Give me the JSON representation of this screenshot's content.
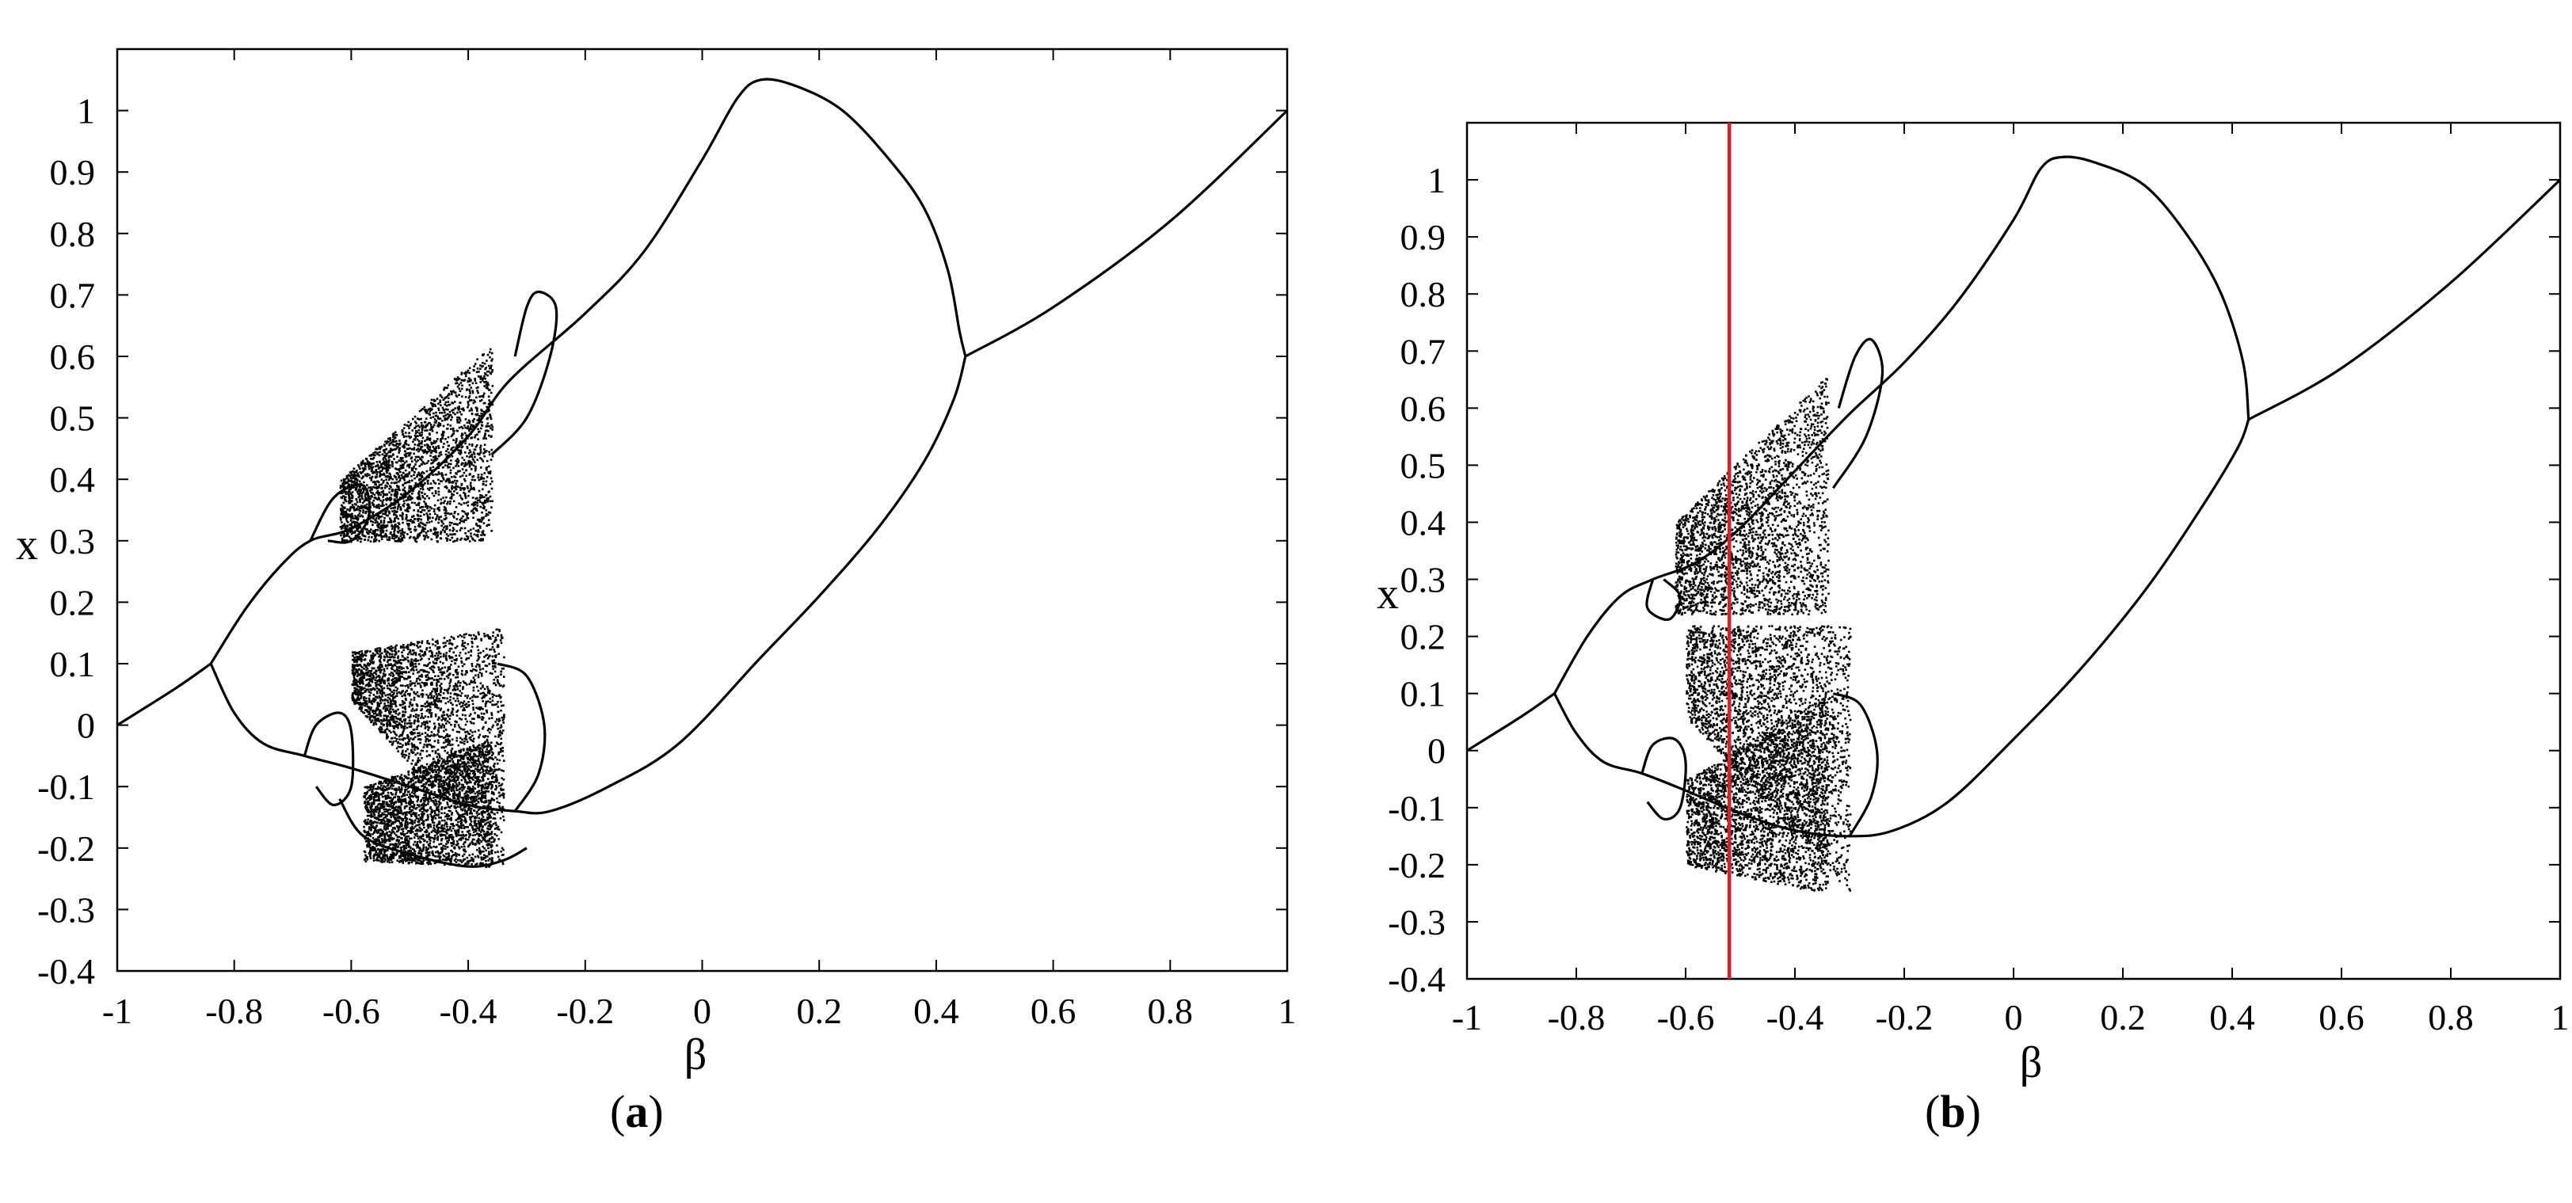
{
  "chart_data": [
    {
      "id": "a",
      "type": "scatter",
      "subtype": "bifurcation-diagram",
      "caption_letter": "a",
      "xlabel": "β",
      "ylabel": "x",
      "xlim": [
        -1,
        1
      ],
      "ylim": [
        -0.4,
        1.1
      ],
      "xticks": [
        -1,
        -0.8,
        -0.6,
        -0.4,
        -0.2,
        0,
        0.2,
        0.4,
        0.6,
        0.8,
        1
      ],
      "xtick_labels": [
        "-1",
        "-0.8",
        "-0.6",
        "-0.4",
        "-0.2",
        "0",
        "0.2",
        "0.4",
        "0.6",
        "0.8",
        "1"
      ],
      "yticks": [
        -0.4,
        -0.3,
        -0.2,
        -0.1,
        0,
        0.1,
        0.2,
        0.3,
        0.4,
        0.5,
        0.6,
        0.7,
        0.8,
        0.9,
        1
      ],
      "ytick_labels": [
        "-0.4",
        "-0.3",
        "-0.2",
        "-0.1",
        "0",
        "0.1",
        "0.2",
        "0.3",
        "0.4",
        "0.5",
        "0.6",
        "0.7",
        "0.8",
        "0.9",
        "1"
      ],
      "grid": false,
      "branches": [
        {
          "points": [
            [
              -1,
              0.0
            ],
            [
              -0.9,
              0.06
            ],
            [
              -0.84,
              0.1
            ]
          ]
        },
        {
          "points": [
            [
              -0.84,
              0.1
            ],
            [
              -0.78,
              0.19
            ],
            [
              -0.72,
              0.26
            ],
            [
              -0.67,
              0.3
            ],
            [
              -0.6,
              0.32
            ],
            [
              -0.5,
              0.38
            ],
            [
              -0.4,
              0.47
            ],
            [
              -0.33,
              0.56
            ],
            [
              -0.2,
              0.67
            ],
            [
              -0.1,
              0.77
            ],
            [
              0.0,
              0.92
            ],
            [
              0.06,
              1.02
            ],
            [
              0.1,
              1.05
            ],
            [
              0.16,
              1.04
            ],
            [
              0.24,
              1.0
            ],
            [
              0.32,
              0.92
            ],
            [
              0.38,
              0.84
            ],
            [
              0.42,
              0.74
            ],
            [
              0.44,
              0.64
            ],
            [
              0.45,
              0.6
            ]
          ]
        },
        {
          "points": [
            [
              -0.84,
              0.1
            ],
            [
              -0.8,
              0.02
            ],
            [
              -0.75,
              -0.03
            ],
            [
              -0.68,
              -0.05
            ],
            [
              -0.6,
              -0.07
            ],
            [
              -0.5,
              -0.1
            ],
            [
              -0.4,
              -0.13
            ],
            [
              -0.32,
              -0.14
            ],
            [
              -0.26,
              -0.14
            ],
            [
              -0.16,
              -0.1
            ],
            [
              -0.04,
              -0.03
            ],
            [
              0.1,
              0.11
            ],
            [
              0.2,
              0.21
            ],
            [
              0.3,
              0.32
            ],
            [
              0.38,
              0.43
            ],
            [
              0.43,
              0.53
            ],
            [
              0.45,
              0.6
            ]
          ]
        },
        {
          "points": [
            [
              0.45,
              0.6
            ],
            [
              0.6,
              0.68
            ],
            [
              0.8,
              0.82
            ],
            [
              1.0,
              1.0
            ]
          ]
        },
        {
          "points": [
            [
              -0.32,
              0.6
            ],
            [
              -0.3,
              0.68
            ],
            [
              -0.28,
              0.705
            ],
            [
              -0.25,
              0.68
            ],
            [
              -0.26,
              0.6
            ],
            [
              -0.3,
              0.5
            ],
            [
              -0.36,
              0.44
            ]
          ]
        },
        {
          "points": [
            [
              -0.67,
              0.3
            ],
            [
              -0.63,
              0.37
            ],
            [
              -0.58,
              0.39
            ],
            [
              -0.57,
              0.34
            ],
            [
              -0.6,
              0.3
            ],
            [
              -0.64,
              0.3
            ]
          ]
        },
        {
          "points": [
            [
              -0.32,
              -0.14
            ],
            [
              -0.28,
              -0.08
            ],
            [
              -0.27,
              0.0
            ],
            [
              -0.3,
              0.08
            ],
            [
              -0.35,
              0.1
            ]
          ]
        },
        {
          "points": [
            [
              -0.68,
              -0.05
            ],
            [
              -0.66,
              0.0
            ],
            [
              -0.62,
              0.02
            ],
            [
              -0.6,
              -0.01
            ],
            [
              -0.6,
              -0.1
            ],
            [
              -0.63,
              -0.13
            ],
            [
              -0.66,
              -0.1
            ]
          ]
        },
        {
          "points": [
            [
              -0.62,
              -0.12
            ],
            [
              -0.58,
              -0.18
            ],
            [
              -0.5,
              -0.21
            ],
            [
              -0.4,
              -0.23
            ],
            [
              -0.34,
              -0.22
            ],
            [
              -0.3,
              -0.2
            ]
          ]
        }
      ],
      "chaotic_regions": [
        {
          "x": [
            -0.62,
            -0.36
          ],
          "ylow": [
            0.3,
            0.3
          ],
          "yhigh": [
            0.4,
            0.62
          ]
        },
        {
          "x": [
            -0.6,
            -0.34
          ],
          "ylow": [
            0.04,
            -0.23
          ],
          "yhigh": [
            0.12,
            0.16
          ]
        },
        {
          "x": [
            -0.58,
            -0.36
          ],
          "ylow": [
            -0.22,
            -0.23
          ],
          "yhigh": [
            -0.1,
            -0.02
          ]
        }
      ]
    },
    {
      "id": "b",
      "type": "scatter",
      "subtype": "bifurcation-diagram",
      "caption_letter": "b",
      "xlabel": "β",
      "ylabel": "x",
      "xlim": [
        -1,
        1
      ],
      "ylim": [
        -0.4,
        1.1
      ],
      "xticks": [
        -1,
        -0.8,
        -0.6,
        -0.4,
        -0.2,
        0,
        0.2,
        0.4,
        0.6,
        0.8,
        1
      ],
      "xtick_labels": [
        "-1",
        "-0.8",
        "-0.6",
        "-0.4",
        "-0.2",
        "0",
        "0.2",
        "0.4",
        "0.6",
        "0.8",
        "1"
      ],
      "yticks": [
        -0.4,
        -0.3,
        -0.2,
        -0.1,
        0,
        0.1,
        0.2,
        0.3,
        0.4,
        0.5,
        0.6,
        0.7,
        0.8,
        0.9,
        1
      ],
      "ytick_labels": [
        "-0.4",
        "-0.3",
        "-0.2",
        "-0.1",
        "0",
        "0.1",
        "0.2",
        "0.3",
        "0.4",
        "0.5",
        "0.6",
        "0.7",
        "0.8",
        "0.9",
        "1"
      ],
      "grid": false,
      "marker_line": {
        "x": -0.52,
        "color": "#e02020"
      },
      "branches": [
        {
          "points": [
            [
              -1,
              0.0
            ],
            [
              -0.9,
              0.06
            ],
            [
              -0.84,
              0.1
            ]
          ]
        },
        {
          "points": [
            [
              -0.84,
              0.1
            ],
            [
              -0.78,
              0.2
            ],
            [
              -0.72,
              0.27
            ],
            [
              -0.66,
              0.3
            ],
            [
              -0.58,
              0.33
            ],
            [
              -0.5,
              0.39
            ],
            [
              -0.4,
              0.49
            ],
            [
              -0.3,
              0.59
            ],
            [
              -0.2,
              0.68
            ],
            [
              -0.1,
              0.79
            ],
            [
              0.0,
              0.93
            ],
            [
              0.05,
              1.02
            ],
            [
              0.09,
              1.04
            ],
            [
              0.15,
              1.03
            ],
            [
              0.24,
              0.99
            ],
            [
              0.32,
              0.9
            ],
            [
              0.38,
              0.8
            ],
            [
              0.42,
              0.68
            ],
            [
              0.43,
              0.58
            ]
          ]
        },
        {
          "points": [
            [
              -0.84,
              0.1
            ],
            [
              -0.8,
              0.03
            ],
            [
              -0.75,
              -0.02
            ],
            [
              -0.68,
              -0.04
            ],
            [
              -0.6,
              -0.07
            ],
            [
              -0.5,
              -0.11
            ],
            [
              -0.4,
              -0.14
            ],
            [
              -0.3,
              -0.15
            ],
            [
              -0.22,
              -0.14
            ],
            [
              -0.12,
              -0.09
            ],
            [
              0.0,
              0.02
            ],
            [
              0.12,
              0.14
            ],
            [
              0.24,
              0.28
            ],
            [
              0.34,
              0.42
            ],
            [
              0.41,
              0.53
            ],
            [
              0.43,
              0.58
            ]
          ]
        },
        {
          "points": [
            [
              0.43,
              0.58
            ],
            [
              0.6,
              0.67
            ],
            [
              0.8,
              0.82
            ],
            [
              1.0,
              1.0
            ]
          ]
        },
        {
          "points": [
            [
              -0.32,
              0.6
            ],
            [
              -0.29,
              0.69
            ],
            [
              -0.26,
              0.72
            ],
            [
              -0.24,
              0.66
            ],
            [
              -0.27,
              0.55
            ],
            [
              -0.33,
              0.46
            ]
          ]
        },
        {
          "points": [
            [
              -0.66,
              0.3
            ],
            [
              -0.67,
              0.25
            ],
            [
              -0.63,
              0.23
            ],
            [
              -0.61,
              0.27
            ],
            [
              -0.64,
              0.3
            ]
          ]
        },
        {
          "points": [
            [
              -0.3,
              -0.15
            ],
            [
              -0.26,
              -0.08
            ],
            [
              -0.25,
              0.0
            ],
            [
              -0.28,
              0.08
            ],
            [
              -0.33,
              0.1
            ]
          ]
        },
        {
          "points": [
            [
              -0.68,
              -0.04
            ],
            [
              -0.66,
              0.01
            ],
            [
              -0.62,
              0.02
            ],
            [
              -0.6,
              -0.02
            ],
            [
              -0.61,
              -0.1
            ],
            [
              -0.64,
              -0.12
            ],
            [
              -0.67,
              -0.09
            ]
          ]
        }
      ],
      "chaotic_regions": [
        {
          "x": [
            -0.62,
            -0.34
          ],
          "ylow": [
            0.24,
            0.24
          ],
          "yhigh": [
            0.4,
            0.66
          ]
        },
        {
          "x": [
            -0.6,
            -0.3
          ],
          "ylow": [
            0.06,
            -0.25
          ],
          "yhigh": [
            0.22,
            0.22
          ]
        },
        {
          "x": [
            -0.6,
            -0.34
          ],
          "ylow": [
            -0.2,
            -0.25
          ],
          "yhigh": [
            -0.05,
            0.1
          ]
        }
      ]
    }
  ]
}
